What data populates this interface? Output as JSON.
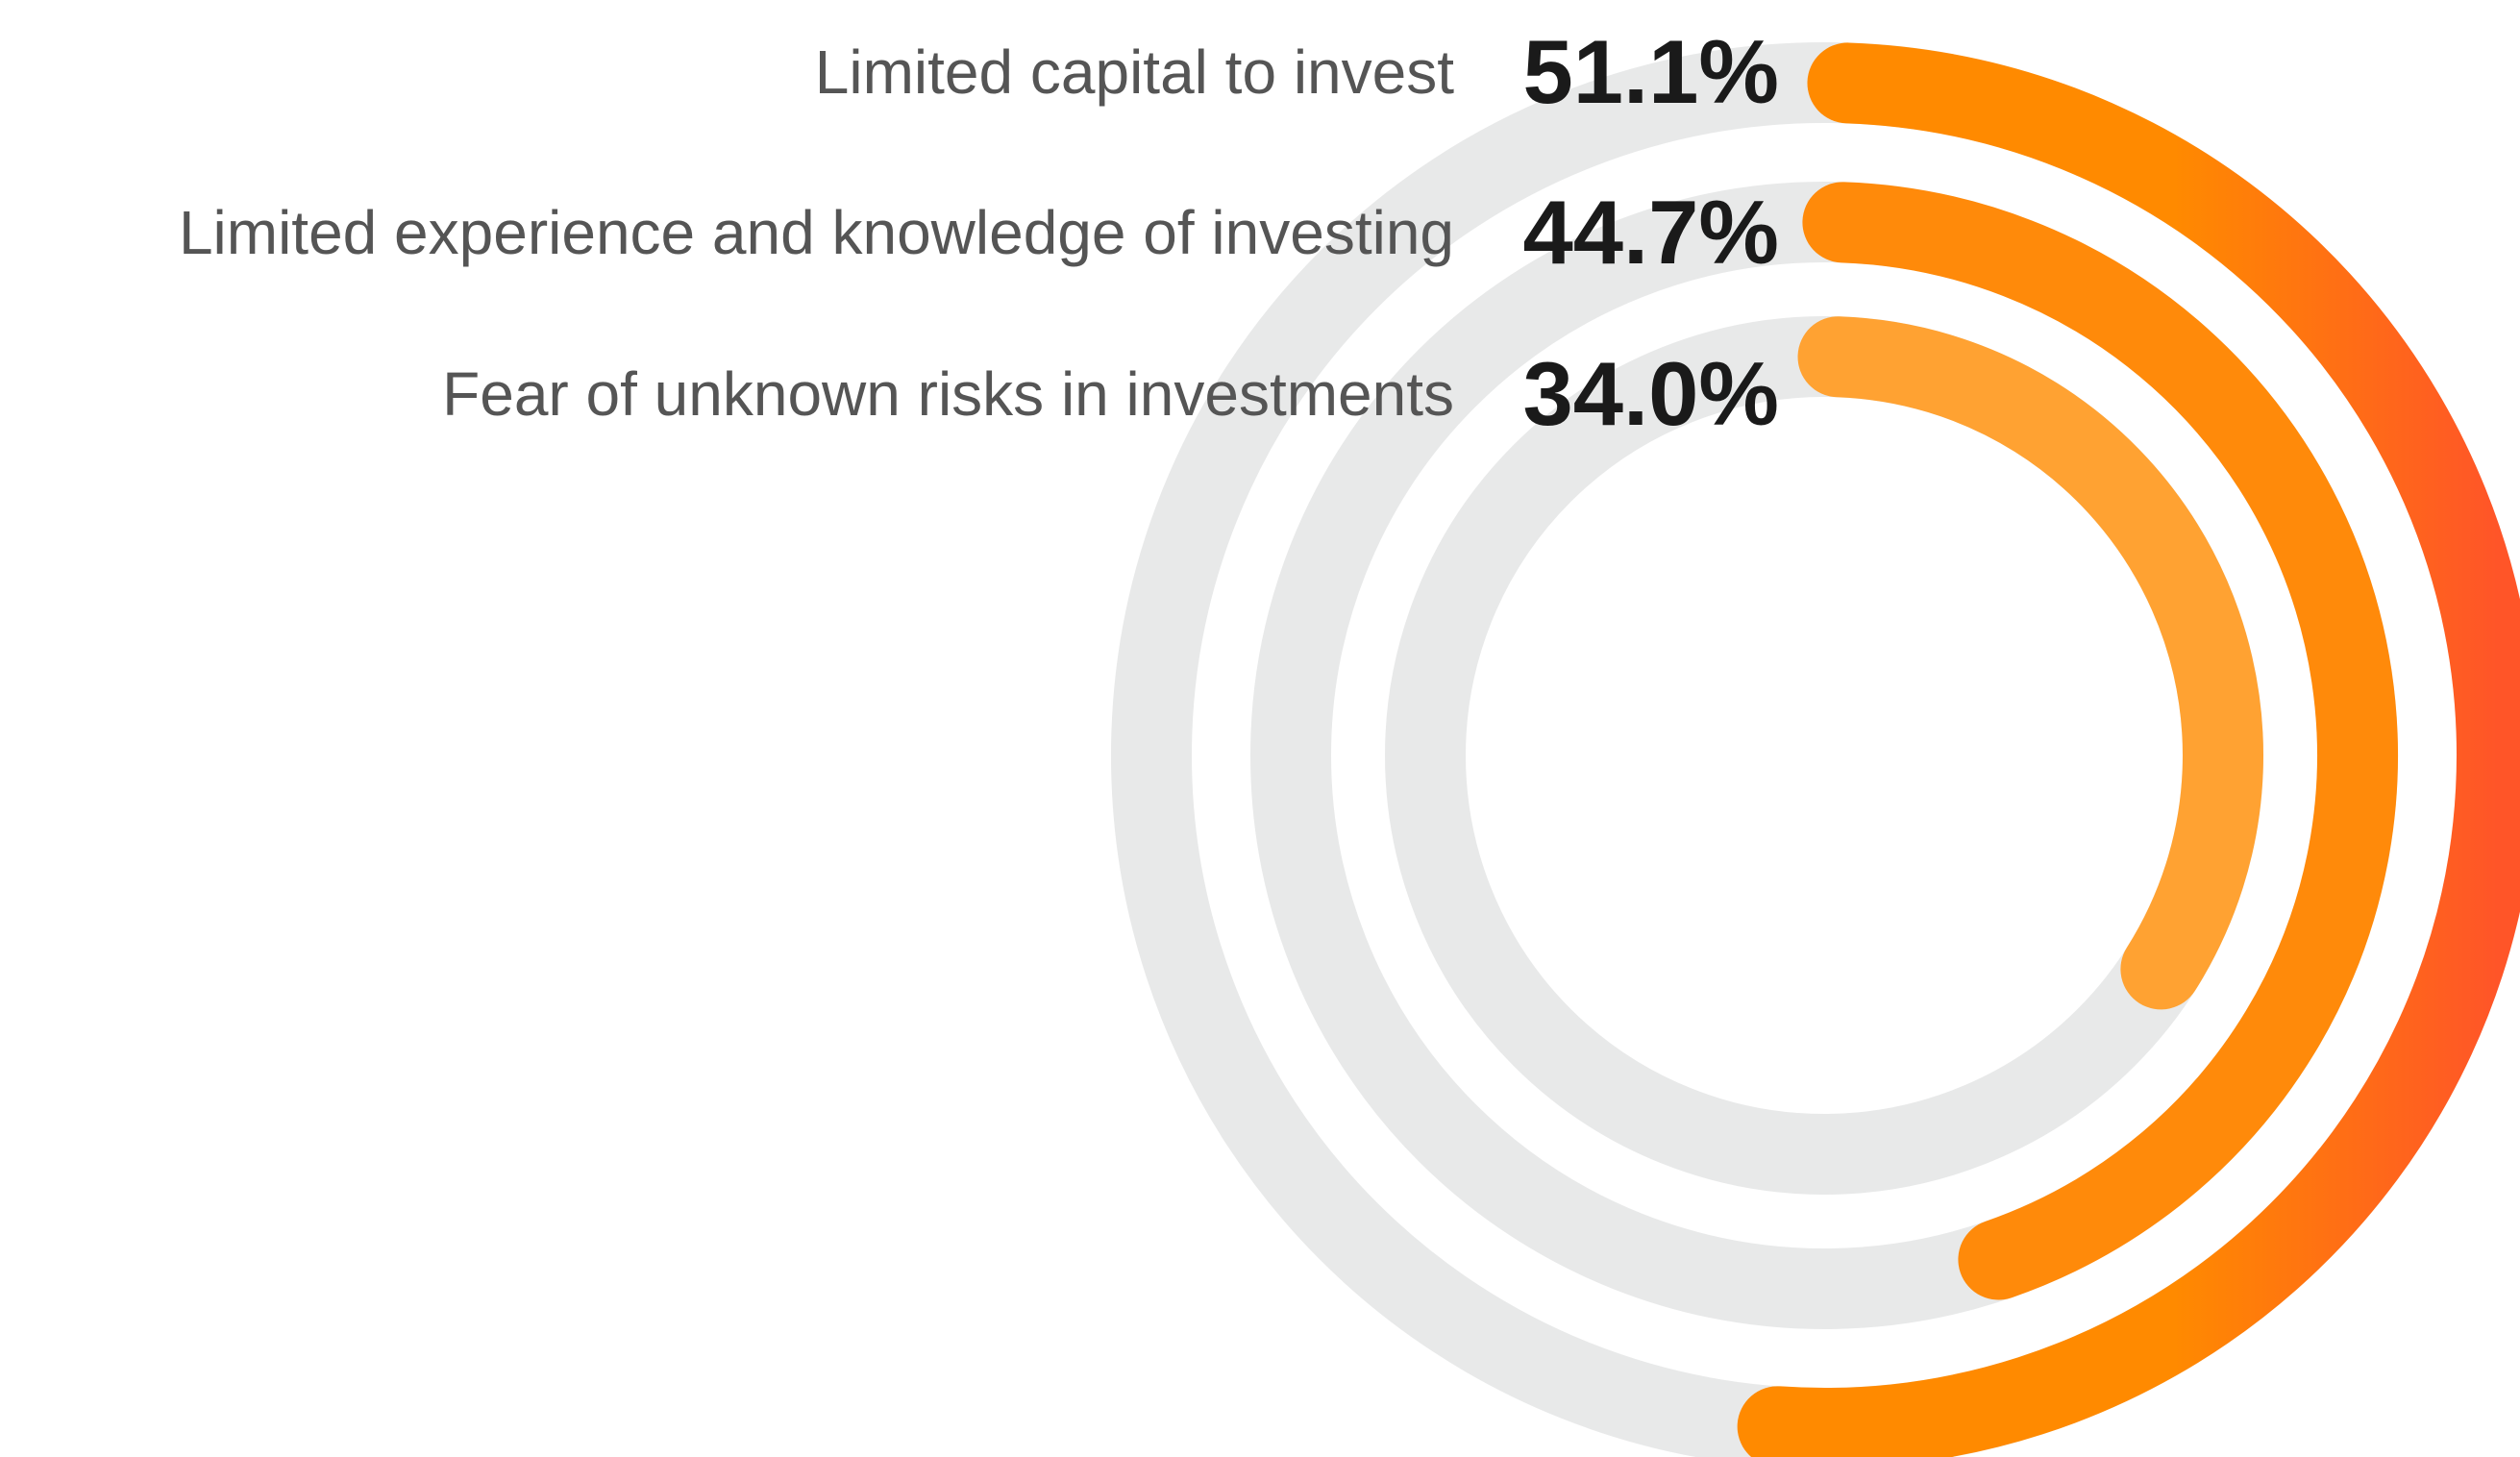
{
  "chart_data": {
    "type": "radial",
    "categories": [
      "Limited capital to invest",
      "Limited experience and knowledge of investing",
      "Fear of unknown risks in investments"
    ],
    "values": [
      51.1,
      44.7,
      34.0
    ],
    "value_labels": [
      "51.1%",
      "44.7%",
      "34.0%"
    ],
    "colors": [
      [
        "#ff8a00",
        "#ff5528"
      ],
      [
        "#ff8a0a",
        "#ff8a0a"
      ],
      [
        "#ffa232",
        "#ffa232"
      ]
    ],
    "track_color": "#e8e9e9",
    "ylim": [
      0,
      100
    ]
  }
}
